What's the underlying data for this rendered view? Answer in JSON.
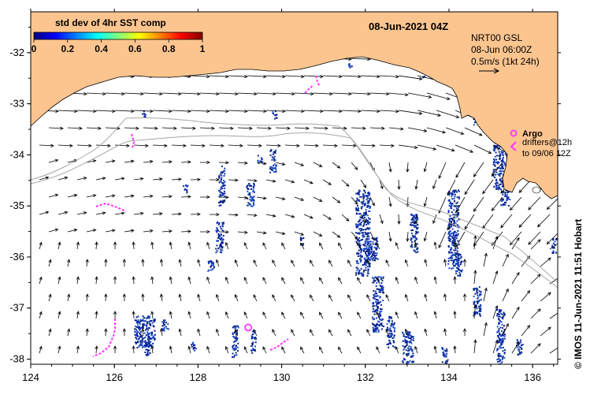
{
  "map": {
    "title": "08-Jun-2021 04Z",
    "colorbar": {
      "title": "std dev of 4hr SST comp",
      "ticks": [
        "0",
        "0.2",
        "0.4",
        "0.6",
        "0.8",
        "1"
      ],
      "tick_values": [
        0,
        0.2,
        0.4,
        0.6,
        0.8,
        1
      ],
      "colors": [
        "#00007f",
        "#0000ff",
        "#007fff",
        "#00ffff",
        "#7fff7f",
        "#ffff00",
        "#ff7f00",
        "#ff0000",
        "#7f0000"
      ]
    },
    "info": {
      "line1": "NRT00 GSL",
      "line2": "08-Jun 06:00Z",
      "line3": "0.5m/s (1kt 24h)"
    },
    "legend": {
      "argo_label": "Argo",
      "drifters_line1": "drifters@12h",
      "drifters_line2": "to 09/06 12Z"
    },
    "credit": "© IMOS 11-Jun-2021 11:51 Hobart",
    "axes": {
      "lon_range": [
        124,
        136.6
      ],
      "lat_range": [
        -38.1,
        -31.2
      ],
      "x_ticks": [
        "124",
        "126",
        "128",
        "130",
        "132",
        "134",
        "136"
      ],
      "x_values": [
        124,
        126,
        128,
        130,
        132,
        134,
        136
      ],
      "y_ticks": [
        "-32",
        "-33",
        "-34",
        "-35",
        "-36",
        "-37",
        "-38"
      ],
      "y_values": [
        -32,
        -33,
        -34,
        -35,
        -36,
        -37,
        -38
      ]
    },
    "colors": {
      "land": "#fcc58f",
      "ocean": "#ffffff",
      "sst_blue": "#1f3fa8",
      "argo": "#ff33ff",
      "arrow": "#000000",
      "shelf": "#a6a6a6"
    },
    "argo_float_lon": 129.2,
    "argo_float_lat": -37.38
  }
}
